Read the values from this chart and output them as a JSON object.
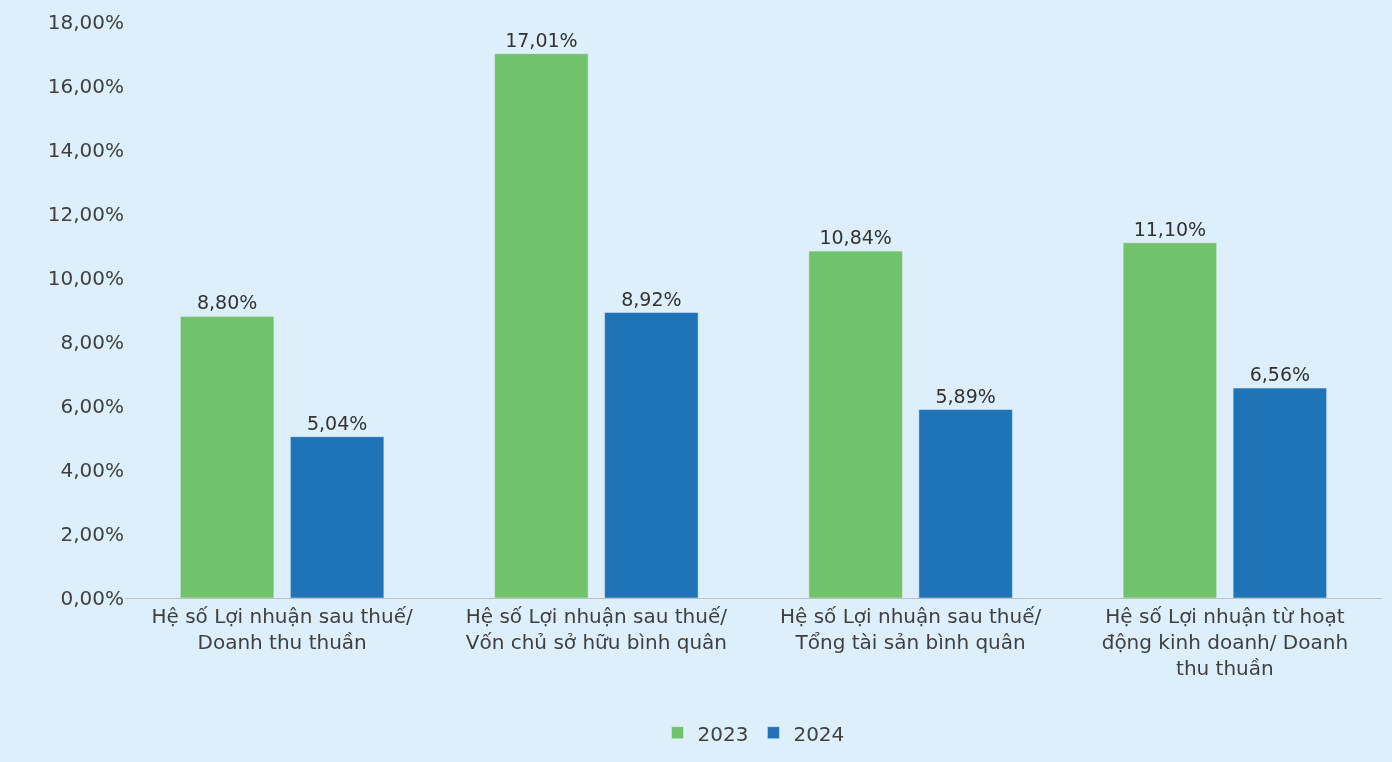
{
  "chart_data": {
    "type": "bar",
    "categories": [
      "Hệ số Lợi nhuận sau thuế/ Doanh thu thuần",
      "Hệ số Lợi nhuận sau thuế/ Vốn chủ sở hữu bình quân",
      "Hệ số Lợi nhuận sau thuế/ Tổng tài sản bình quân",
      "Hệ số Lợi nhuận từ hoạt động kinh doanh/ Doanh thu thuần"
    ],
    "series": [
      {
        "name": "2023",
        "color": "#70c36b",
        "values": [
          8.8,
          17.01,
          10.84,
          11.1
        ],
        "value_labels": [
          "8,80%",
          "17,01%",
          "10,84%",
          "11,10%"
        ]
      },
      {
        "name": "2024",
        "color": "#1f73b7",
        "values": [
          5.04,
          8.92,
          5.89,
          6.56
        ],
        "value_labels": [
          "5,04%",
          "8,92%",
          "5,89%",
          "6,56%"
        ]
      }
    ],
    "ylim": [
      0,
      18
    ],
    "yticks": [
      {
        "value": 0,
        "label": "0,00%"
      },
      {
        "value": 2,
        "label": "2,00%"
      },
      {
        "value": 4,
        "label": "4,00%"
      },
      {
        "value": 6,
        "label": "6,00%"
      },
      {
        "value": 8,
        "label": "8,00%"
      },
      {
        "value": 10,
        "label": "10,00%"
      },
      {
        "value": 12,
        "label": "12,00%"
      },
      {
        "value": 14,
        "label": "14,00%"
      },
      {
        "value": 16,
        "label": "16,00%"
      },
      {
        "value": 18,
        "label": "18,00%"
      }
    ],
    "grid": false,
    "legend": "bottom"
  }
}
